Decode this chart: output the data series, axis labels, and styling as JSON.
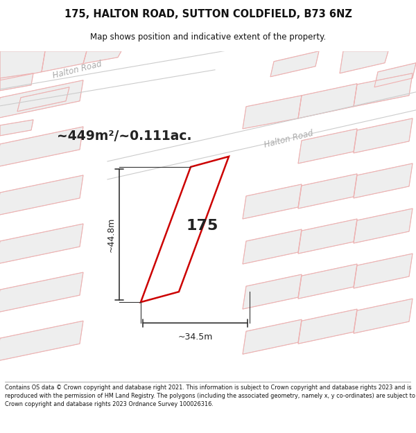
{
  "title_line1": "175, HALTON ROAD, SUTTON COLDFIELD, B73 6NZ",
  "title_line2": "Map shows position and indicative extent of the property.",
  "footer_text": "Contains OS data © Crown copyright and database right 2021. This information is subject to Crown copyright and database rights 2023 and is reproduced with the permission of HM Land Registry. The polygons (including the associated geometry, namely x, y co-ordinates) are subject to Crown copyright and database rights 2023 Ordnance Survey 100026316.",
  "area_text": "~449m²/~0.111ac.",
  "plot_number": "175",
  "dim_width": "~34.5m",
  "dim_height": "~44.8m",
  "bg_color": "#ffffff",
  "map_bg": "#ffffff",
  "plot_fill": "#ffffff",
  "plot_edge_color": "#cc0000",
  "neighbor_fill": "#eeeeee",
  "neighbor_edge_light": "#f0b0b0",
  "neighbor_edge_dark": "#c0c0c0",
  "road_label_color": "#aaaaaa"
}
